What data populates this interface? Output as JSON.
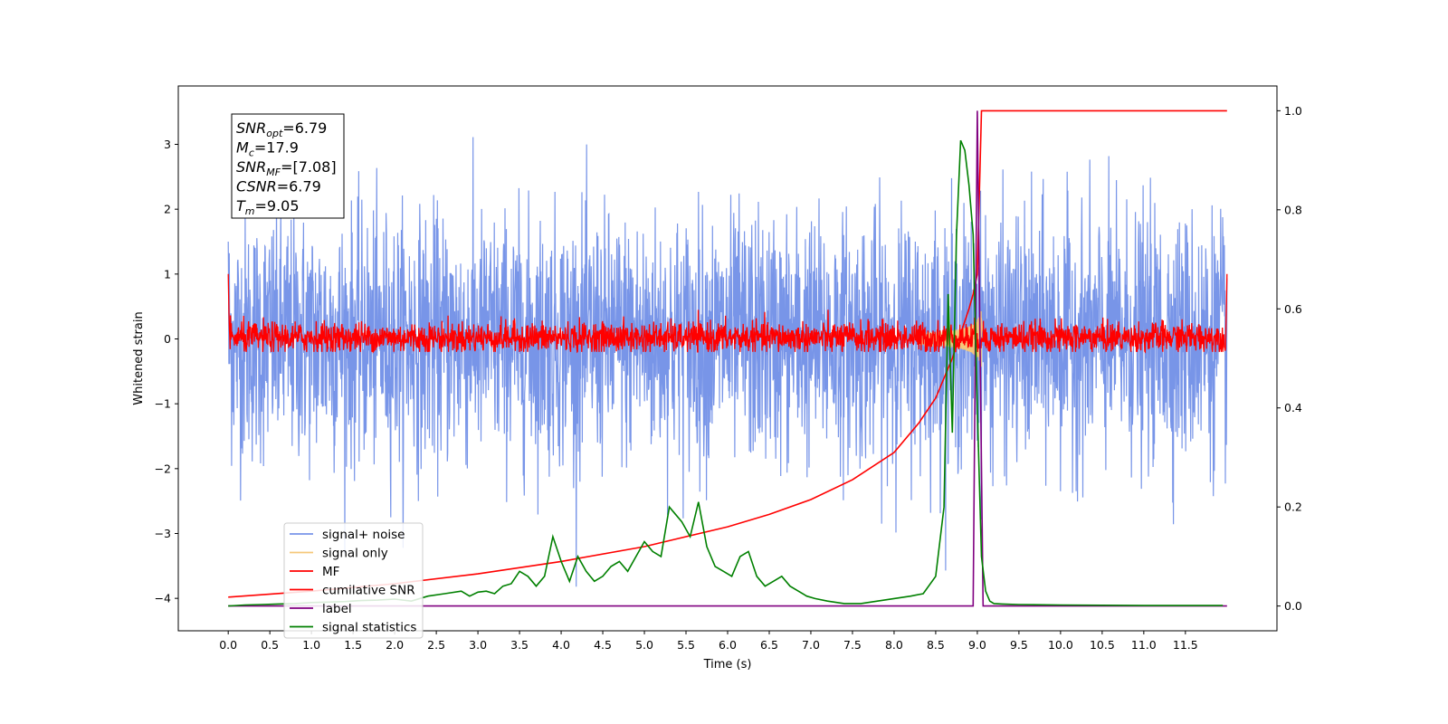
{
  "chart_data": {
    "type": "line",
    "xlabel": "Time (s)",
    "ylabel": "Whitened strain",
    "xlim": [
      -0.6,
      12.6
    ],
    "ylim": [
      -4.5,
      3.9
    ],
    "y2lim": [
      -0.05,
      1.05
    ],
    "xticks": [
      "0.0",
      "0.5",
      "1.0",
      "1.5",
      "2.0",
      "2.5",
      "3.0",
      "3.5",
      "4.0",
      "4.5",
      "5.0",
      "5.5",
      "6.0",
      "6.5",
      "7.0",
      "7.5",
      "8.0",
      "8.5",
      "9.0",
      "9.5",
      "10.0",
      "10.5",
      "11.0",
      "11.5"
    ],
    "yticks": [
      "3",
      "2",
      "1",
      "0",
      "−1",
      "−2",
      "−3",
      "−4"
    ],
    "y2ticks": [
      "1.0",
      "0.8",
      "0.6",
      "0.4",
      "0.2",
      "0.0"
    ],
    "grid": false,
    "legend_position": "lower-left",
    "legend": [
      "signal+ noise",
      "signal only",
      "MF",
      "cumilative SNR",
      "label",
      "signal statistics"
    ],
    "info_box": {
      "lines": [
        {
          "sym": "SNR",
          "sub": "opt",
          "val": "=6.79"
        },
        {
          "sym": "M",
          "sub": "c",
          "val": "=17.9"
        },
        {
          "sym": "SNR",
          "sub": "MF",
          "val": "=[7.08]"
        },
        {
          "sym": "CSNR",
          "sub": "",
          "val": "=6.79"
        },
        {
          "sym": "T",
          "sub": "m",
          "val": "=9.05"
        }
      ]
    },
    "series": [
      {
        "name": "signal+ noise",
        "color": "#7895e8",
        "axis": "left",
        "kind": "noise",
        "x_range": [
          0,
          12
        ],
        "typical_amplitude": 1.8,
        "peak_amplitude": 3.5
      },
      {
        "name": "signal only",
        "color": "#f5c77a",
        "axis": "left",
        "kind": "chirp",
        "t_merge": 9.05,
        "peak_amplitude": 0.45
      },
      {
        "name": "MF",
        "color": "#ff0000",
        "axis": "left",
        "kind": "noise",
        "x_range": [
          0,
          12
        ],
        "typical_amplitude": 0.25,
        "peak_amplitude": 0.7
      },
      {
        "name": "cumilative SNR",
        "color": "#ff0000",
        "axis": "right",
        "x": [
          0.0,
          1.0,
          2.0,
          3.0,
          4.0,
          5.0,
          6.0,
          6.5,
          7.0,
          7.5,
          8.0,
          8.3,
          8.5,
          8.7,
          8.8,
          8.9,
          8.95,
          9.0,
          9.05,
          12.0
        ],
        "y": [
          0.018,
          0.03,
          0.045,
          0.065,
          0.09,
          0.12,
          0.16,
          0.185,
          0.215,
          0.255,
          0.31,
          0.37,
          0.42,
          0.5,
          0.55,
          0.6,
          0.63,
          0.67,
          1.0,
          1.0
        ]
      },
      {
        "name": "label",
        "color": "#800080",
        "axis": "right",
        "x": [
          0.0,
          8.95,
          9.0,
          9.07,
          12.0
        ],
        "y": [
          0.0,
          0.0,
          1.0,
          0.0,
          0.0
        ]
      },
      {
        "name": "signal statistics",
        "color": "#008000",
        "axis": "right",
        "x": [
          0.0,
          0.2,
          0.4,
          0.6,
          0.8,
          1.0,
          1.2,
          1.4,
          1.6,
          1.8,
          2.0,
          2.2,
          2.4,
          2.6,
          2.8,
          2.9,
          3.0,
          3.1,
          3.2,
          3.3,
          3.4,
          3.5,
          3.6,
          3.7,
          3.8,
          3.9,
          4.0,
          4.1,
          4.2,
          4.3,
          4.4,
          4.5,
          4.6,
          4.7,
          4.8,
          4.9,
          5.0,
          5.1,
          5.2,
          5.3,
          5.35,
          5.45,
          5.55,
          5.65,
          5.75,
          5.85,
          5.95,
          6.05,
          6.15,
          6.25,
          6.35,
          6.45,
          6.55,
          6.65,
          6.75,
          6.85,
          6.95,
          7.05,
          7.2,
          7.4,
          7.6,
          7.8,
          8.0,
          8.2,
          8.35,
          8.5,
          8.6,
          8.65,
          8.7,
          8.75,
          8.8,
          8.85,
          8.9,
          8.95,
          9.0,
          9.05,
          9.1,
          9.15,
          9.2,
          9.3,
          9.5,
          10.0,
          11.0,
          11.95
        ],
        "y": [
          0.0,
          0.002,
          0.003,
          0.004,
          0.005,
          0.007,
          0.008,
          0.009,
          0.011,
          0.012,
          0.014,
          0.01,
          0.02,
          0.025,
          0.03,
          0.02,
          0.028,
          0.03,
          0.025,
          0.04,
          0.045,
          0.07,
          0.06,
          0.04,
          0.06,
          0.14,
          0.09,
          0.05,
          0.1,
          0.07,
          0.05,
          0.06,
          0.08,
          0.09,
          0.07,
          0.1,
          0.13,
          0.11,
          0.1,
          0.2,
          0.19,
          0.17,
          0.14,
          0.21,
          0.12,
          0.08,
          0.07,
          0.06,
          0.1,
          0.11,
          0.06,
          0.04,
          0.05,
          0.06,
          0.04,
          0.03,
          0.02,
          0.015,
          0.01,
          0.005,
          0.005,
          0.01,
          0.015,
          0.02,
          0.025,
          0.06,
          0.2,
          0.63,
          0.35,
          0.75,
          0.94,
          0.92,
          0.85,
          0.75,
          0.4,
          0.1,
          0.03,
          0.01,
          0.005,
          0.004,
          0.003,
          0.002,
          0.001,
          0.001
        ]
      }
    ]
  }
}
